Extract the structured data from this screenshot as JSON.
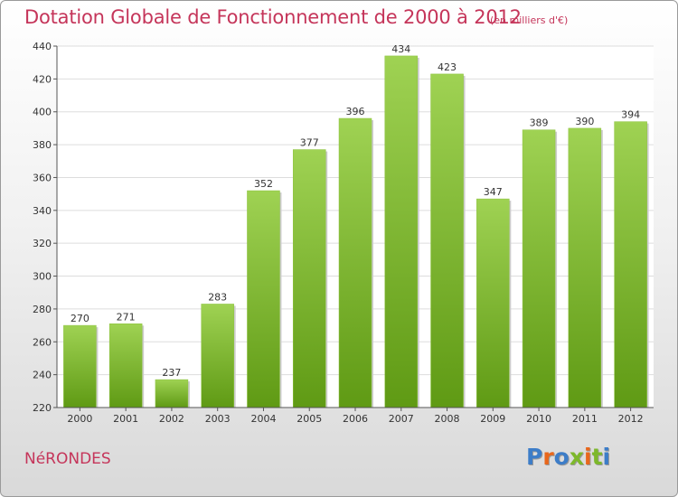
{
  "header": {
    "title": "Dotation Globale de Fonctionnement de 2000 à 2012",
    "subtitle": "(en milliers d'€)"
  },
  "footer": {
    "commune": "NéRONDES",
    "brand": "Proxiti"
  },
  "colors": {
    "title": "#c5355a",
    "bar_top": "#9fd253",
    "bar_bottom": "#5f9a14",
    "brand_letters": [
      "#3d7dc8",
      "#e8671c",
      "#3d7dc8",
      "#7db82b",
      "#e8671c",
      "#7db82b",
      "#3d7dc8"
    ]
  },
  "chart_data": {
    "type": "bar",
    "title": "Dotation Globale de Fonctionnement de 2000 à 2012",
    "subtitle": "(en milliers d'€)",
    "categories": [
      "2000",
      "2001",
      "2002",
      "2003",
      "2004",
      "2005",
      "2006",
      "2007",
      "2008",
      "2009",
      "2010",
      "2011",
      "2012"
    ],
    "values": [
      270,
      271,
      237,
      283,
      352,
      377,
      396,
      434,
      423,
      347,
      389,
      390,
      394
    ],
    "ylim": [
      220,
      440
    ],
    "yticks": [
      220,
      240,
      260,
      280,
      300,
      320,
      340,
      360,
      380,
      400,
      420,
      440
    ],
    "grid": true,
    "legend": "none"
  }
}
